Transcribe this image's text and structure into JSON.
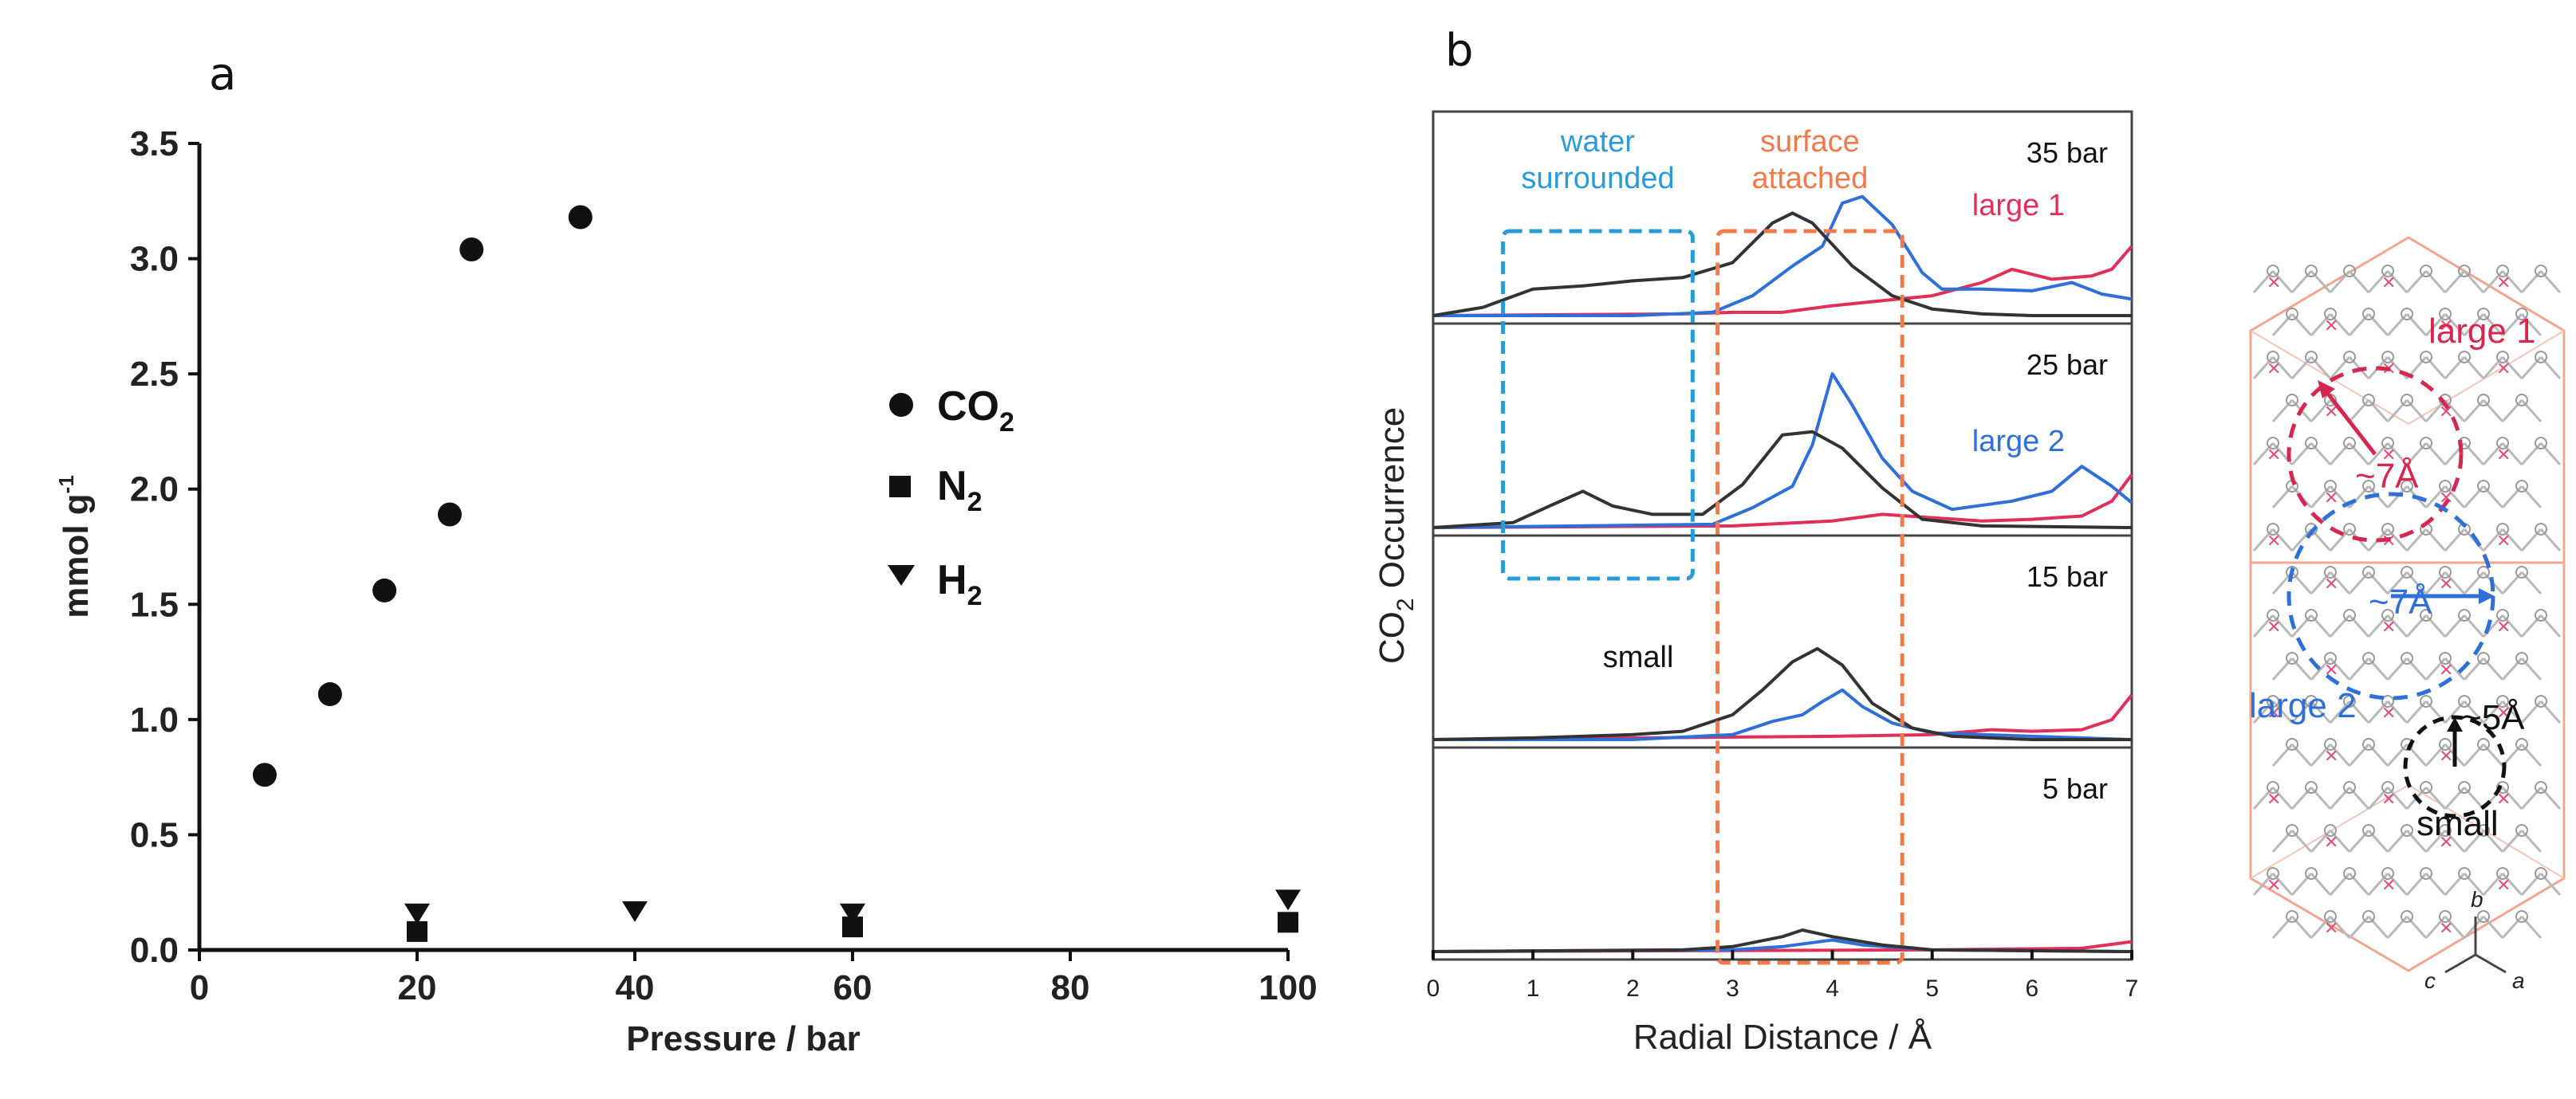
{
  "chart_data": [
    {
      "panel": "a",
      "type": "scatter",
      "xlabel": "Pressure / bar",
      "ylabel": "mmol g",
      "ylabel_sup": "-1",
      "xlim": [
        0,
        100
      ],
      "ylim": [
        0,
        3.5
      ],
      "xticks": [
        "0",
        "20",
        "40",
        "60",
        "80",
        "100"
      ],
      "yticks": [
        "0.0",
        "0.5",
        "1.0",
        "1.5",
        "2.0",
        "2.5",
        "3.0",
        "3.5"
      ],
      "legend_position": "center-right",
      "series": [
        {
          "name": "CO2",
          "label": "CO",
          "sub": "2",
          "marker": "circle",
          "x": [
            6,
            12,
            17,
            23,
            25,
            35
          ],
          "y": [
            0.76,
            1.11,
            1.56,
            1.89,
            3.04,
            3.18
          ]
        },
        {
          "name": "N2",
          "label": "N",
          "sub": "2",
          "marker": "square",
          "x": [
            20,
            60,
            100
          ],
          "y": [
            0.08,
            0.1,
            0.12
          ]
        },
        {
          "name": "H2",
          "label": "H",
          "sub": "2",
          "marker": "triangle-down",
          "x": [
            20,
            40,
            60,
            100
          ],
          "y": [
            0.16,
            0.17,
            0.16,
            0.22
          ]
        }
      ]
    },
    {
      "panel": "b",
      "type": "line",
      "xlabel": "Radial Distance / Å",
      "ylabel": "CO",
      "ylabel_sub": "2",
      "ylabel_rest": " Occurrence",
      "xlim": [
        0,
        7
      ],
      "xticks": [
        "0",
        "1",
        "2",
        "3",
        "4",
        "5",
        "6",
        "7"
      ],
      "regions": [
        {
          "name": "water-surrounded",
          "line1": "water",
          "line2": "surrounded",
          "x": [
            0.7,
            2.6
          ],
          "color": "#2b9bd8"
        },
        {
          "name": "surface-attached",
          "line1": "surface",
          "line2": "attached",
          "x": [
            2.85,
            4.7
          ],
          "color": "#f07a4a"
        }
      ],
      "colors": {
        "small": "#333333",
        "large 1": "#e0305a",
        "large 2": "#2f6fd8"
      },
      "subplots": [
        {
          "pressure": "35 bar",
          "annotation": "large 1",
          "annotation_color": "#e0305a",
          "small": [
            [
              0,
              0
            ],
            [
              0.5,
              0.5
            ],
            [
              1,
              1.6
            ],
            [
              1.5,
              1.8
            ],
            [
              2,
              2.1
            ],
            [
              2.5,
              2.3
            ],
            [
              3,
              3.2
            ],
            [
              3.4,
              5.6
            ],
            [
              3.6,
              6.2
            ],
            [
              3.8,
              5.6
            ],
            [
              4.2,
              3
            ],
            [
              4.6,
              1.2
            ],
            [
              5,
              0.4
            ],
            [
              5.5,
              0.1
            ],
            [
              6,
              0
            ],
            [
              7,
              0
            ]
          ],
          "large 2": [
            [
              0,
              0
            ],
            [
              2,
              0
            ],
            [
              2.8,
              0.2
            ],
            [
              3.2,
              1.2
            ],
            [
              3.6,
              3
            ],
            [
              3.9,
              4.2
            ],
            [
              4.1,
              6.8
            ],
            [
              4.3,
              7.2
            ],
            [
              4.6,
              5.5
            ],
            [
              4.9,
              2.6
            ],
            [
              5.1,
              1.6
            ],
            [
              5.5,
              1.6
            ],
            [
              6,
              1.5
            ],
            [
              6.4,
              2
            ],
            [
              6.7,
              1.3
            ],
            [
              7,
              1
            ]
          ],
          "large 1": [
            [
              0,
              0
            ],
            [
              2.5,
              0.1
            ],
            [
              3,
              0.2
            ],
            [
              3.5,
              0.2
            ],
            [
              4,
              0.6
            ],
            [
              4.5,
              0.9
            ],
            [
              5,
              1.2
            ],
            [
              5.5,
              2
            ],
            [
              5.8,
              2.8
            ],
            [
              6.2,
              2.2
            ],
            [
              6.6,
              2.4
            ],
            [
              6.8,
              2.8
            ],
            [
              7,
              4.2
            ]
          ]
        },
        {
          "pressure": "25 bar",
          "annotation": "large 2",
          "annotation_color": "#2f6fd8",
          "small": [
            [
              0,
              0
            ],
            [
              0.8,
              0.3
            ],
            [
              1.2,
              1.4
            ],
            [
              1.5,
              2.2
            ],
            [
              1.8,
              1.3
            ],
            [
              2.2,
              0.8
            ],
            [
              2.7,
              0.8
            ],
            [
              3.1,
              2.6
            ],
            [
              3.5,
              5.6
            ],
            [
              3.8,
              5.8
            ],
            [
              4.1,
              4.8
            ],
            [
              4.5,
              2.4
            ],
            [
              4.9,
              0.5
            ],
            [
              5.5,
              0.1
            ],
            [
              7,
              0
            ]
          ],
          "large 2": [
            [
              0,
              0
            ],
            [
              2.8,
              0.2
            ],
            [
              3.2,
              1.2
            ],
            [
              3.6,
              2.5
            ],
            [
              3.8,
              5
            ],
            [
              4,
              9.3
            ],
            [
              4.2,
              7.4
            ],
            [
              4.5,
              4.2
            ],
            [
              4.8,
              2.2
            ],
            [
              5.2,
              1.1
            ],
            [
              5.8,
              1.6
            ],
            [
              6.2,
              2.2
            ],
            [
              6.5,
              3.7
            ],
            [
              6.8,
              2.5
            ],
            [
              7,
              1.5
            ]
          ],
          "large 1": [
            [
              0,
              0
            ],
            [
              3,
              0.1
            ],
            [
              4,
              0.4
            ],
            [
              4.5,
              0.8
            ],
            [
              5,
              0.6
            ],
            [
              5.5,
              0.4
            ],
            [
              6,
              0.5
            ],
            [
              6.5,
              0.7
            ],
            [
              6.8,
              1.6
            ],
            [
              7,
              3.2
            ]
          ]
        },
        {
          "pressure": "15 bar",
          "annotation": "small",
          "annotation_color": "#111111",
          "small": [
            [
              0,
              0
            ],
            [
              1,
              0.1
            ],
            [
              2,
              0.3
            ],
            [
              2.5,
              0.5
            ],
            [
              3,
              1.5
            ],
            [
              3.3,
              3
            ],
            [
              3.6,
              4.7
            ],
            [
              3.85,
              5.5
            ],
            [
              4.1,
              4.5
            ],
            [
              4.4,
              2.2
            ],
            [
              4.8,
              0.7
            ],
            [
              5.2,
              0.2
            ],
            [
              6,
              0
            ],
            [
              7,
              0
            ]
          ],
          "large 2": [
            [
              0,
              0
            ],
            [
              2,
              0
            ],
            [
              3,
              0.3
            ],
            [
              3.4,
              1.1
            ],
            [
              3.7,
              1.5
            ],
            [
              3.9,
              2.3
            ],
            [
              4.1,
              3
            ],
            [
              4.3,
              2
            ],
            [
              4.6,
              1
            ],
            [
              5,
              0.4
            ],
            [
              5.5,
              0.3
            ],
            [
              6,
              0.2
            ],
            [
              7,
              0
            ]
          ],
          "large 1": [
            [
              0,
              0
            ],
            [
              4,
              0.2
            ],
            [
              5,
              0.3
            ],
            [
              5.6,
              0.6
            ],
            [
              6,
              0.5
            ],
            [
              6.5,
              0.6
            ],
            [
              6.8,
              1.2
            ],
            [
              7,
              2.7
            ]
          ]
        },
        {
          "pressure": "5 bar",
          "annotation": "",
          "annotation_color": "#111111",
          "small": [
            [
              0,
              0
            ],
            [
              2.5,
              0.1
            ],
            [
              3,
              0.3
            ],
            [
              3.5,
              0.9
            ],
            [
              3.7,
              1.3
            ],
            [
              4,
              0.9
            ],
            [
              4.5,
              0.4
            ],
            [
              5,
              0.1
            ],
            [
              7,
              0
            ]
          ],
          "large 2": [
            [
              0,
              0
            ],
            [
              3,
              0.1
            ],
            [
              3.5,
              0.3
            ],
            [
              4,
              0.7
            ],
            [
              4.3,
              0.4
            ],
            [
              5,
              0.1
            ],
            [
              7,
              0
            ]
          ],
          "large 1": [
            [
              0,
              0
            ],
            [
              5,
              0.1
            ],
            [
              6.5,
              0.2
            ],
            [
              7,
              0.6
            ]
          ]
        }
      ]
    }
  ],
  "panel_labels": {
    "a": "a",
    "b": "b"
  },
  "crystal": {
    "labels": {
      "large1": "large 1",
      "large2": "large 2",
      "small": "small"
    },
    "distances": {
      "d1": "~7Å",
      "d2": "~7Å",
      "d3": "~5Å"
    },
    "axes": {
      "b": "b",
      "c": "c",
      "a": "a"
    }
  }
}
